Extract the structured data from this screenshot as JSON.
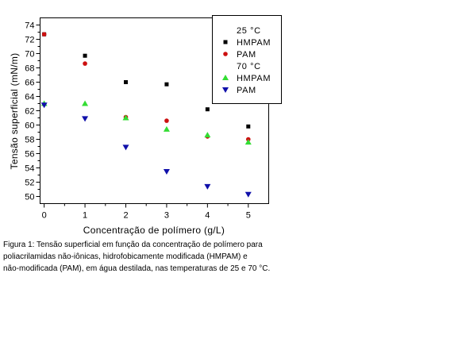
{
  "chart_data": {
    "type": "scatter",
    "xlabel": "Concentração de polímero (g/L)",
    "ylabel": "Tensão superficial (mN/m)",
    "xlim": [
      -0.1,
      5.5
    ],
    "ylim": [
      49,
      75
    ],
    "xticks": [
      0,
      1,
      2,
      3,
      4,
      5
    ],
    "yticks": [
      50,
      52,
      54,
      56,
      58,
      60,
      62,
      64,
      66,
      68,
      70,
      72,
      74
    ],
    "grid": false,
    "legend_position": "top-right",
    "legend_groups": [
      {
        "title": "25 °C",
        "series": [
          {
            "name": "HMPAM",
            "marker": "square",
            "color": "#000000",
            "x": [
              0,
              1,
              2,
              3,
              4,
              5
            ],
            "y": [
              72.7,
              69.7,
              66.0,
              65.7,
              62.2,
              59.8
            ]
          },
          {
            "name": "PAM",
            "marker": "circle",
            "color": "#cc1010",
            "x": [
              0,
              1,
              2,
              3,
              4,
              5
            ],
            "y": [
              72.7,
              68.6,
              61.1,
              60.6,
              58.4,
              58.0
            ]
          }
        ]
      },
      {
        "title": "70 °C",
        "series": [
          {
            "name": "HMPAM",
            "marker": "triangle-up",
            "color": "#33dd33",
            "x": [
              0,
              1,
              2,
              3,
              4,
              5
            ],
            "y": [
              63.0,
              63.0,
              61.0,
              59.4,
              58.6,
              57.6
            ]
          },
          {
            "name": "PAM",
            "marker": "triangle-down",
            "color": "#1010aa",
            "x": [
              0,
              1,
              2,
              3,
              4,
              5
            ],
            "y": [
              62.8,
              60.9,
              56.9,
              53.5,
              51.4,
              50.3
            ]
          }
        ]
      }
    ]
  },
  "caption": {
    "line1": "Figura 1: Tensão superficial em função da concentração de polímero para",
    "line2": "poliacrilamidas não-iônicas, hidrofobicamente modificada (HMPAM) e",
    "line3": "não-modificada (PAM), em água destilada, nas temperaturas de 25 e 70 °C."
  }
}
